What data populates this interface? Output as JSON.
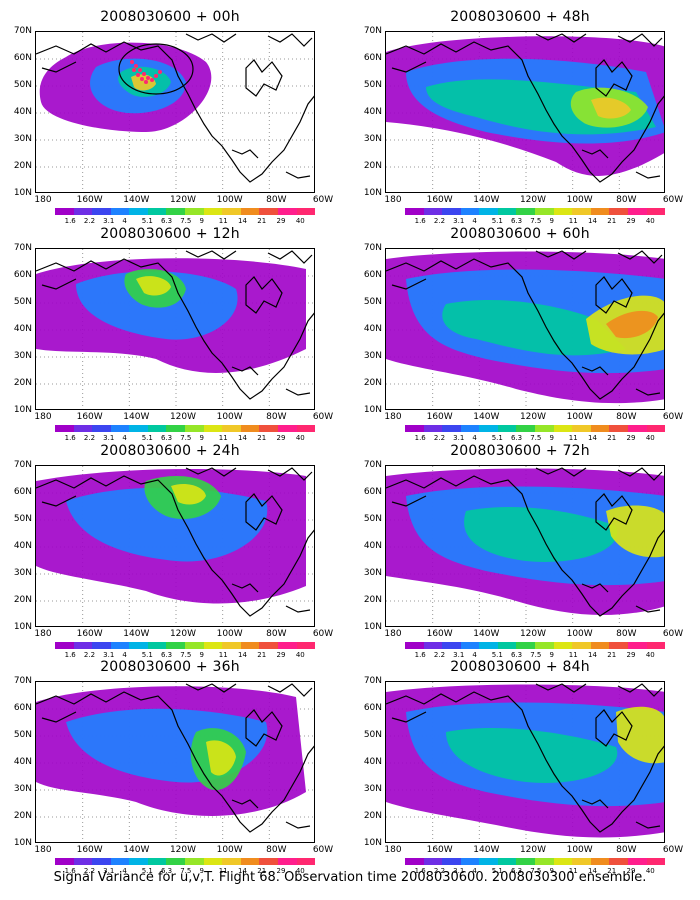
{
  "caption": "Signal Variance for u,v,T. Flight 68. Observation time 2008030600. 2008030300 ensemble.",
  "axes": {
    "lat_labels": [
      "70N",
      "60N",
      "50N",
      "40N",
      "30N",
      "20N",
      "10N"
    ],
    "lon_labels": [
      "180",
      "160W",
      "140W",
      "120W",
      "100W",
      "80W",
      "60W"
    ]
  },
  "colorbar": {
    "ticks": [
      "1.6",
      "2.2",
      "3.1",
      "4",
      "5.1",
      "6.3",
      "7.5",
      "9",
      "11",
      "14",
      "21",
      "29",
      "40"
    ],
    "colors": [
      "#a000c8",
      "#6e2ee6",
      "#3c46f0",
      "#1e82ff",
      "#00b4e6",
      "#00c8a0",
      "#32d246",
      "#96e628",
      "#dce614",
      "#f0c828",
      "#f08c1e",
      "#f0503c",
      "#ff1e8c",
      "#ff2870"
    ]
  },
  "panels": [
    {
      "title": "2008030600 + 00h",
      "time": "+00h",
      "mode": "obs"
    },
    {
      "title": "2008030600 + 48h",
      "time": "+48h",
      "mode": "fcst"
    },
    {
      "title": "2008030600 + 12h",
      "time": "+12h",
      "mode": "fcst"
    },
    {
      "title": "2008030600 + 60h",
      "time": "+60h",
      "mode": "fcst"
    },
    {
      "title": "2008030600 + 24h",
      "time": "+24h",
      "mode": "fcst"
    },
    {
      "title": "2008030600 + 72h",
      "time": "+72h",
      "mode": "fcst"
    },
    {
      "title": "2008030600 + 36h",
      "time": "+36h",
      "mode": "fcst"
    },
    {
      "title": "2008030600 + 84h",
      "time": "+84h",
      "mode": "fcst"
    }
  ]
}
